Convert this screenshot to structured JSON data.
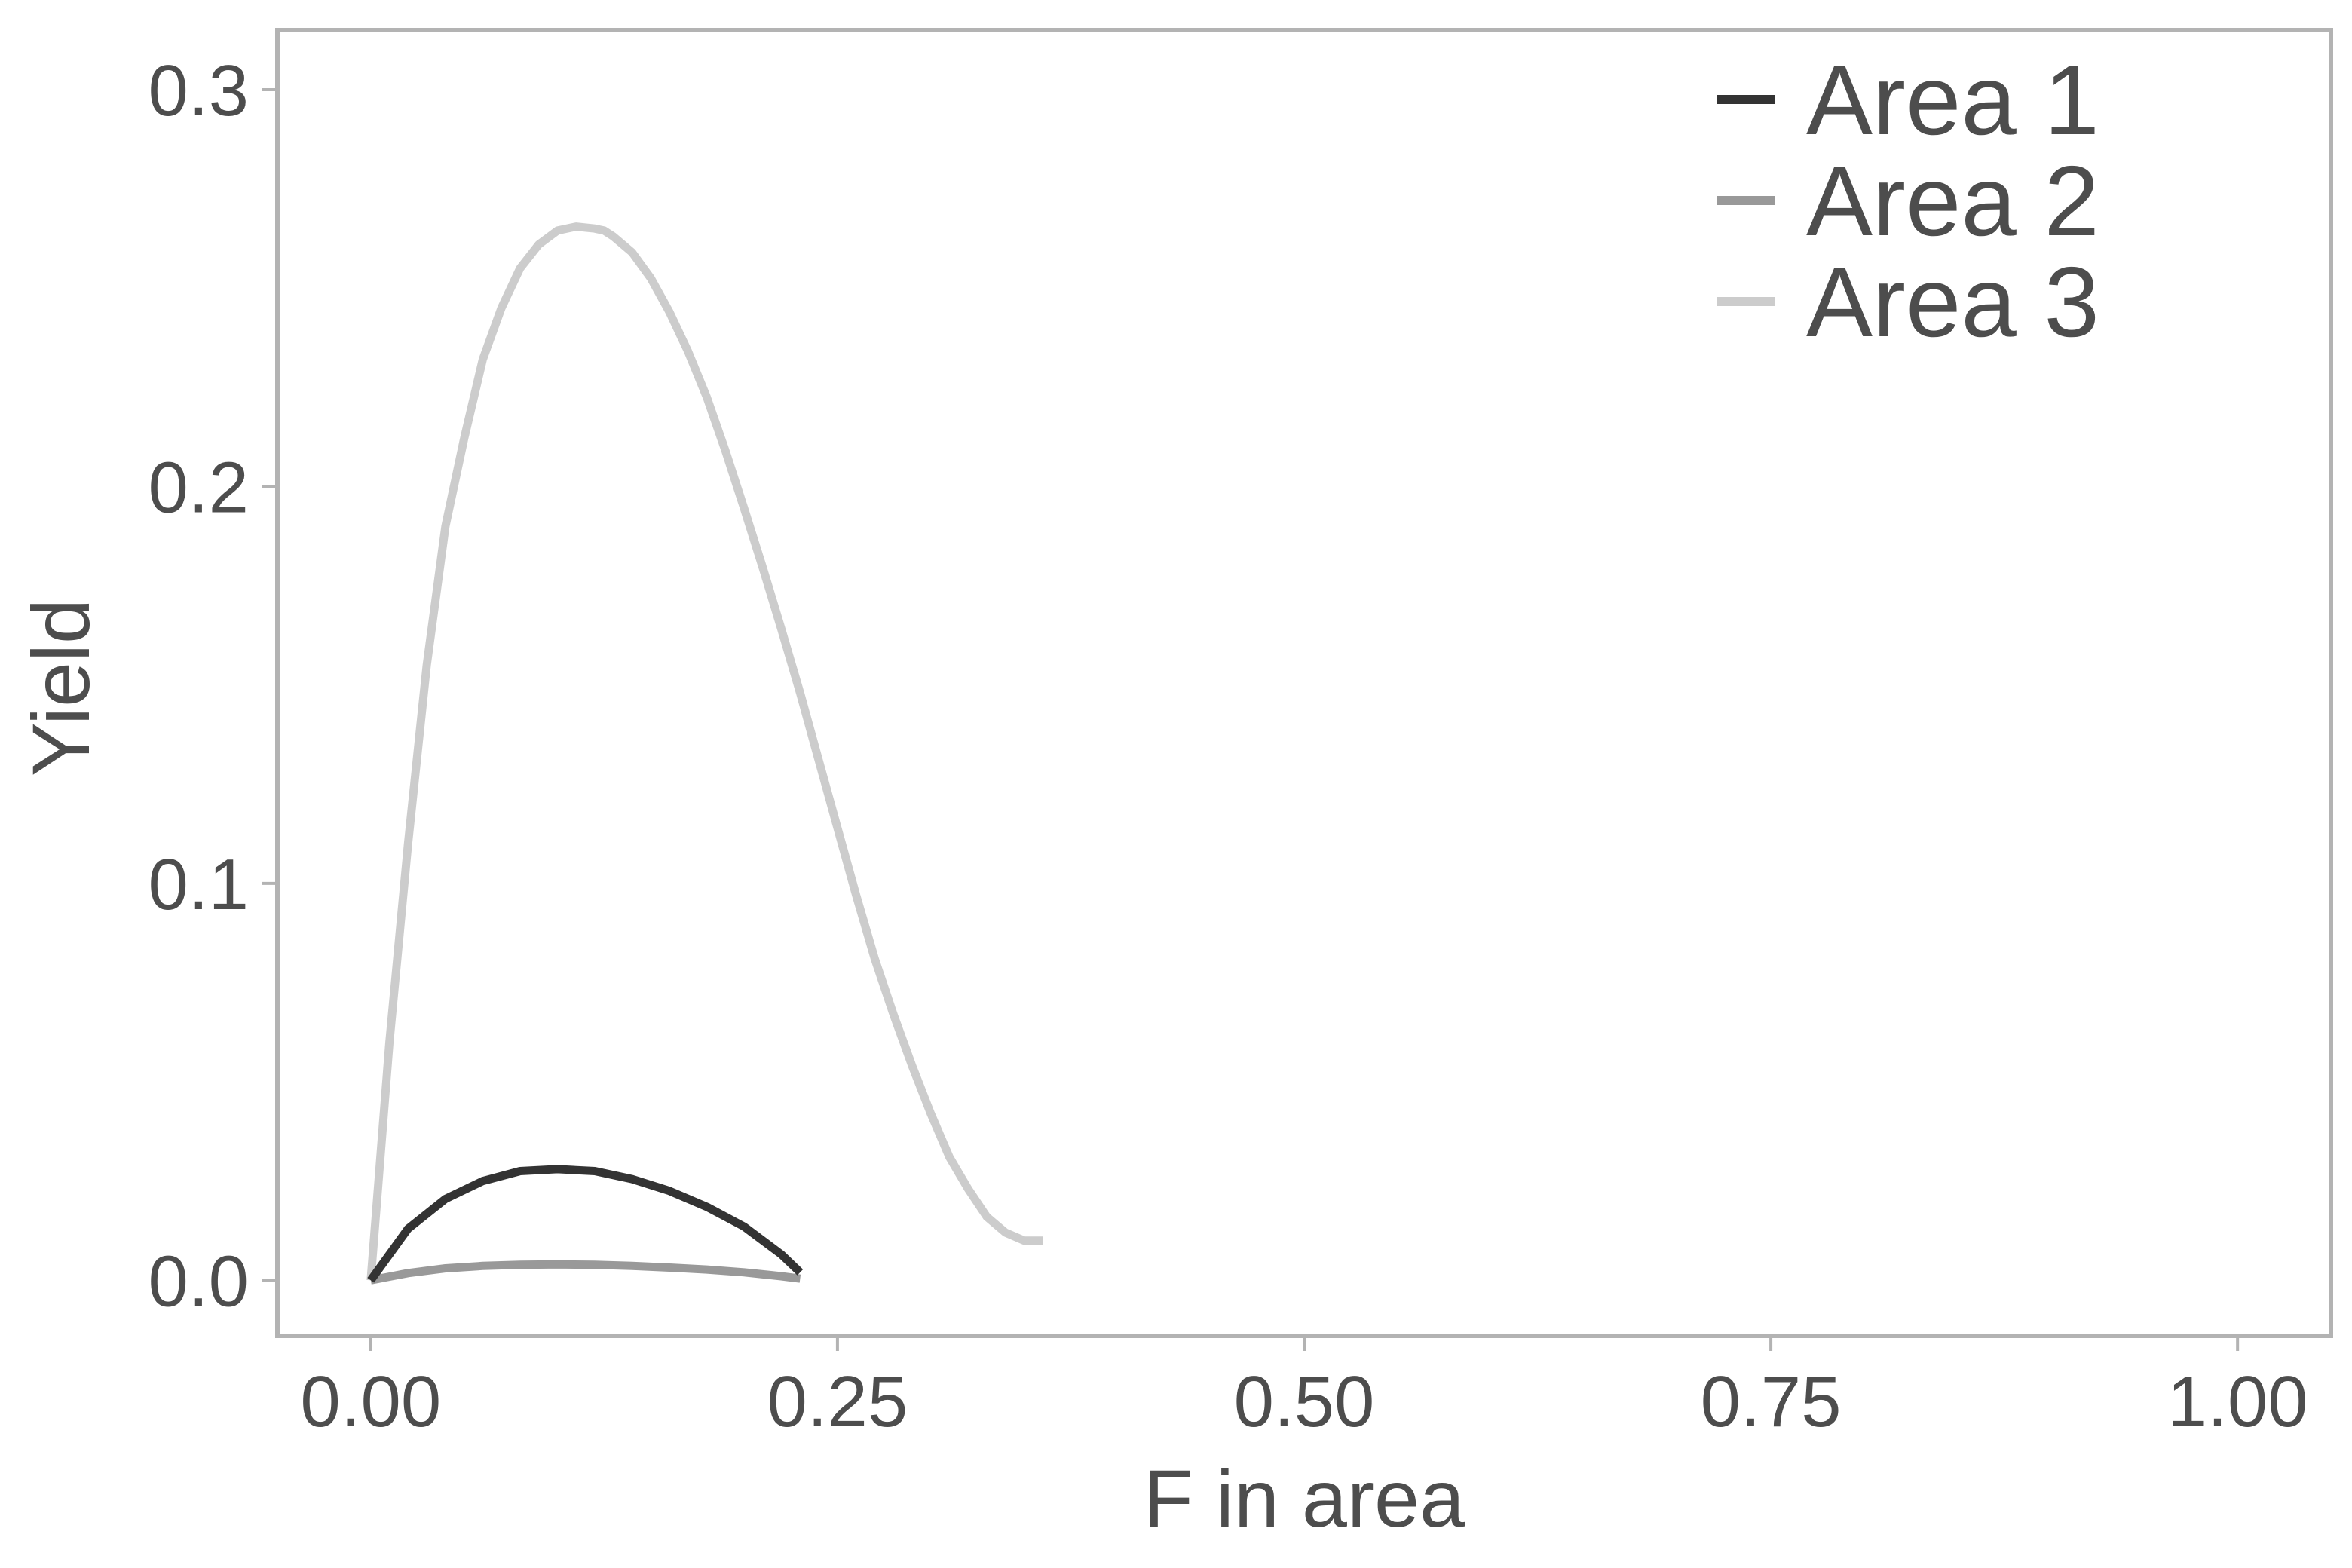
{
  "chart_data": {
    "type": "line",
    "xlabel": "F in area",
    "ylabel": "Yield",
    "xlim": [
      -0.05,
      1.05
    ],
    "ylim": [
      -0.014,
      0.315
    ],
    "x_ticks": [
      0.0,
      0.25,
      0.5,
      0.75,
      1.0
    ],
    "x_tick_labels": [
      "0.00",
      "0.25",
      "0.50",
      "0.75",
      "1.00"
    ],
    "y_ticks": [
      0.0,
      0.1,
      0.2,
      0.3
    ],
    "y_tick_labels": [
      "0.0",
      "0.1",
      "0.2",
      "0.3"
    ],
    "grid": false,
    "legend_position": "top-right",
    "colors": {
      "panel_border": "#b3b3b3",
      "tick": "#b3b3b3",
      "text": "#4d4d4d"
    },
    "series": [
      {
        "name": "Area 1",
        "color": "#333333",
        "x": [
          0.0,
          0.02,
          0.04,
          0.06,
          0.08,
          0.1,
          0.12,
          0.14,
          0.16,
          0.18,
          0.2,
          0.22,
          0.23
        ],
        "y": [
          0.0,
          0.013,
          0.0205,
          0.025,
          0.0275,
          0.028,
          0.0275,
          0.0255,
          0.0225,
          0.0185,
          0.0135,
          0.0065,
          0.002
        ]
      },
      {
        "name": "Area 2",
        "color": "#999999",
        "x": [
          0.0,
          0.02,
          0.04,
          0.06,
          0.08,
          0.1,
          0.12,
          0.14,
          0.16,
          0.18,
          0.2,
          0.22,
          0.23
        ],
        "y": [
          0.0,
          0.0018,
          0.003,
          0.0036,
          0.0039,
          0.004,
          0.0039,
          0.0036,
          0.0032,
          0.0027,
          0.002,
          0.001,
          0.0004
        ]
      },
      {
        "name": "Area 3",
        "color": "#cccccc",
        "x": [
          0.0,
          0.01,
          0.02,
          0.03,
          0.04,
          0.05,
          0.06,
          0.07,
          0.08,
          0.09,
          0.1,
          0.11,
          0.12,
          0.125,
          0.13,
          0.14,
          0.15,
          0.16,
          0.17,
          0.18,
          0.19,
          0.2,
          0.21,
          0.22,
          0.23,
          0.24,
          0.25,
          0.26,
          0.27,
          0.28,
          0.29,
          0.3,
          0.31,
          0.32,
          0.33,
          0.34,
          0.35,
          0.36
        ],
        "y": [
          0.0,
          0.06,
          0.11,
          0.155,
          0.19,
          0.212,
          0.232,
          0.245,
          0.255,
          0.261,
          0.2645,
          0.2655,
          0.265,
          0.2645,
          0.263,
          0.259,
          0.2525,
          0.244,
          0.234,
          0.2225,
          0.209,
          0.1945,
          0.1795,
          0.164,
          0.148,
          0.131,
          0.114,
          0.097,
          0.081,
          0.067,
          0.054,
          0.042,
          0.031,
          0.023,
          0.016,
          0.012,
          0.01,
          0.01
        ]
      }
    ]
  }
}
